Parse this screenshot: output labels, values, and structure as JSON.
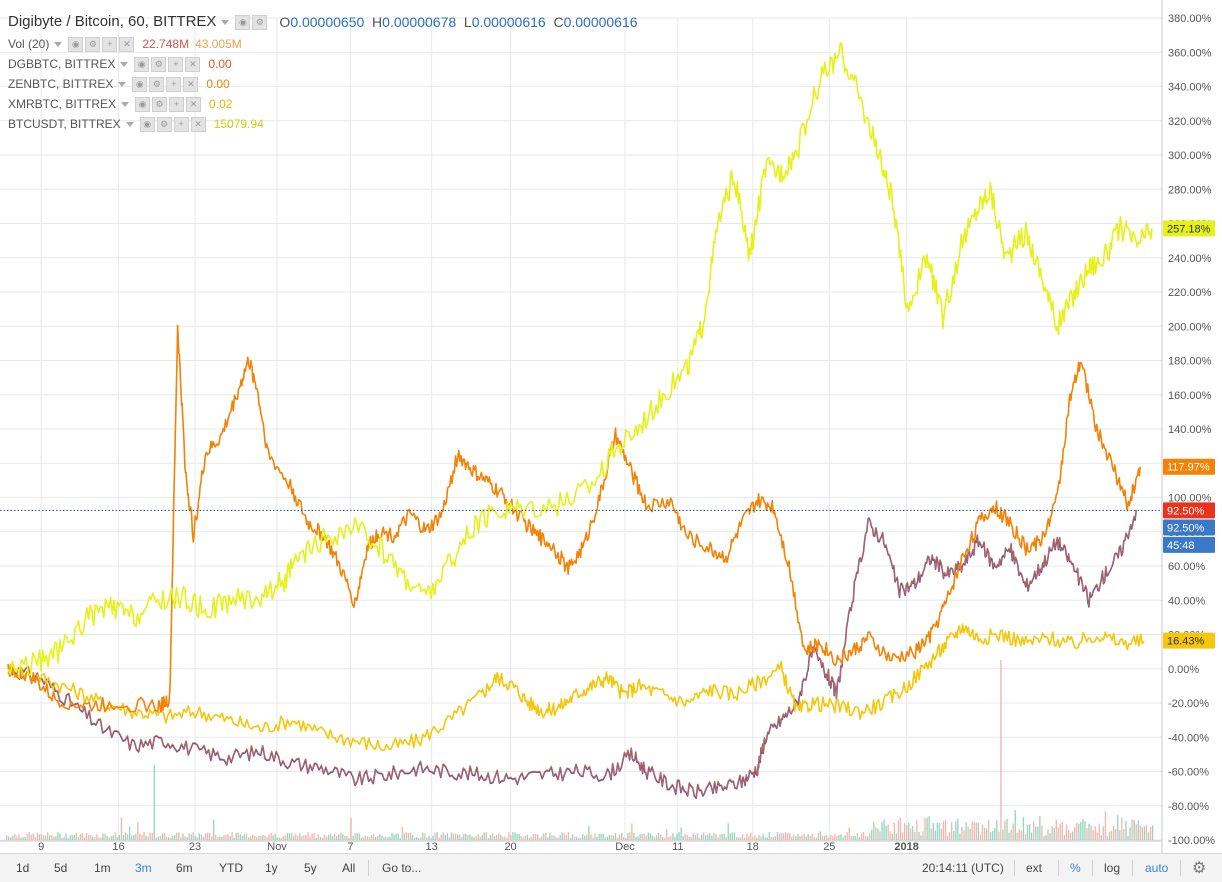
{
  "chart_data": {
    "type": "line",
    "title": "Digibyte / Bitcoin, 60, BITTREX",
    "ohlc": {
      "o": "0.00000650",
      "h": "0.00000678",
      "l": "0.00000616",
      "c": "0.00000616"
    },
    "y_scale": "percent",
    "ylim": [
      -100,
      380
    ],
    "y_ticks": [
      380,
      360,
      340,
      320,
      300,
      280,
      260,
      240,
      220,
      200,
      180,
      160,
      140,
      120,
      100,
      80,
      60,
      40,
      20,
      0,
      -20,
      -40,
      -60,
      -80,
      -100
    ],
    "x_ticks": [
      "9",
      "16",
      "23",
      "Nov",
      "7",
      "13",
      "20",
      "Dec",
      "11",
      "18",
      "25",
      "2018"
    ],
    "x_tick_positions": [
      0.042,
      0.14,
      0.237,
      0.341,
      0.434,
      0.537,
      0.637,
      0.782,
      0.849,
      0.944,
      1.041,
      1.139
    ],
    "series": [
      {
        "name": "BTCUSDT, BITTREX",
        "color": "#e4f21a",
        "last_label": "257.18%",
        "points": [
          [
            0.0,
            0
          ],
          [
            0.04,
            4
          ],
          [
            0.07,
            12
          ],
          [
            0.1,
            30
          ],
          [
            0.13,
            36
          ],
          [
            0.16,
            30
          ],
          [
            0.19,
            40
          ],
          [
            0.22,
            42
          ],
          [
            0.25,
            34
          ],
          [
            0.28,
            40
          ],
          [
            0.32,
            42
          ],
          [
            0.35,
            52
          ],
          [
            0.37,
            64
          ],
          [
            0.4,
            75
          ],
          [
            0.44,
            82
          ],
          [
            0.47,
            72
          ],
          [
            0.5,
            55
          ],
          [
            0.53,
            42
          ],
          [
            0.56,
            62
          ],
          [
            0.59,
            82
          ],
          [
            0.62,
            92
          ],
          [
            0.65,
            95
          ],
          [
            0.7,
            96
          ],
          [
            0.74,
            108
          ],
          [
            0.77,
            128
          ],
          [
            0.8,
            142
          ],
          [
            0.83,
            160
          ],
          [
            0.86,
            175
          ],
          [
            0.88,
            200
          ],
          [
            0.9,
            260
          ],
          [
            0.92,
            288
          ],
          [
            0.94,
            240
          ],
          [
            0.96,
            292
          ],
          [
            0.98,
            290
          ],
          [
            1.0,
            302
          ],
          [
            1.03,
            345
          ],
          [
            1.055,
            360
          ],
          [
            1.075,
            340
          ],
          [
            1.1,
            305
          ],
          [
            1.12,
            275
          ],
          [
            1.14,
            210
          ],
          [
            1.165,
            240
          ],
          [
            1.185,
            205
          ],
          [
            1.21,
            250
          ],
          [
            1.23,
            270
          ],
          [
            1.245,
            280
          ],
          [
            1.265,
            240
          ],
          [
            1.29,
            255
          ],
          [
            1.31,
            230
          ],
          [
            1.33,
            200
          ],
          [
            1.35,
            218
          ],
          [
            1.37,
            235
          ],
          [
            1.39,
            240
          ],
          [
            1.41,
            258
          ],
          [
            1.43,
            248
          ],
          [
            1.45,
            257
          ]
        ]
      },
      {
        "name": "XMRBTC, BITTREX",
        "color": "#f38206",
        "last_label": "117.97%",
        "points": [
          [
            0.0,
            0
          ],
          [
            0.03,
            -5
          ],
          [
            0.06,
            -18
          ],
          [
            0.1,
            -22
          ],
          [
            0.14,
            -20
          ],
          [
            0.19,
            -22
          ],
          [
            0.205,
            -18
          ],
          [
            0.215,
            200
          ],
          [
            0.225,
            115
          ],
          [
            0.235,
            78
          ],
          [
            0.25,
            125
          ],
          [
            0.27,
            135
          ],
          [
            0.29,
            160
          ],
          [
            0.305,
            180
          ],
          [
            0.315,
            165
          ],
          [
            0.33,
            125
          ],
          [
            0.36,
            105
          ],
          [
            0.38,
            85
          ],
          [
            0.4,
            78
          ],
          [
            0.42,
            60
          ],
          [
            0.44,
            38
          ],
          [
            0.455,
            70
          ],
          [
            0.47,
            80
          ],
          [
            0.49,
            78
          ],
          [
            0.51,
            90
          ],
          [
            0.53,
            80
          ],
          [
            0.55,
            90
          ],
          [
            0.57,
            125
          ],
          [
            0.59,
            115
          ],
          [
            0.61,
            108
          ],
          [
            0.63,
            100
          ],
          [
            0.65,
            88
          ],
          [
            0.67,
            78
          ],
          [
            0.69,
            72
          ],
          [
            0.71,
            58
          ],
          [
            0.73,
            72
          ],
          [
            0.75,
            100
          ],
          [
            0.77,
            136
          ],
          [
            0.79,
            115
          ],
          [
            0.81,
            95
          ],
          [
            0.84,
            98
          ],
          [
            0.86,
            78
          ],
          [
            0.89,
            70
          ],
          [
            0.91,
            65
          ],
          [
            0.93,
            85
          ],
          [
            0.95,
            98
          ],
          [
            0.97,
            95
          ],
          [
            0.99,
            60
          ],
          [
            1.01,
            10
          ],
          [
            1.03,
            15
          ],
          [
            1.05,
            5
          ],
          [
            1.07,
            10
          ],
          [
            1.09,
            18
          ],
          [
            1.12,
            5
          ],
          [
            1.15,
            10
          ],
          [
            1.17,
            20
          ],
          [
            1.19,
            40
          ],
          [
            1.21,
            65
          ],
          [
            1.23,
            85
          ],
          [
            1.25,
            95
          ],
          [
            1.27,
            85
          ],
          [
            1.29,
            70
          ],
          [
            1.31,
            75
          ],
          [
            1.33,
            100
          ],
          [
            1.345,
            155
          ],
          [
            1.36,
            180
          ],
          [
            1.38,
            140
          ],
          [
            1.4,
            118
          ],
          [
            1.42,
            95
          ],
          [
            1.435,
            118
          ]
        ]
      },
      {
        "name": "ZENBTC, BITTREX",
        "color": "#f4c70d",
        "last_label": "16.43%",
        "points": [
          [
            0.0,
            0
          ],
          [
            0.04,
            -5
          ],
          [
            0.08,
            -12
          ],
          [
            0.12,
            -20
          ],
          [
            0.16,
            -25
          ],
          [
            0.2,
            -28
          ],
          [
            0.24,
            -25
          ],
          [
            0.28,
            -30
          ],
          [
            0.32,
            -35
          ],
          [
            0.36,
            -30
          ],
          [
            0.4,
            -38
          ],
          [
            0.44,
            -42
          ],
          [
            0.48,
            -46
          ],
          [
            0.52,
            -42
          ],
          [
            0.56,
            -30
          ],
          [
            0.6,
            -15
          ],
          [
            0.62,
            -5
          ],
          [
            0.64,
            -10
          ],
          [
            0.66,
            -20
          ],
          [
            0.68,
            -25
          ],
          [
            0.7,
            -22
          ],
          [
            0.72,
            -15
          ],
          [
            0.74,
            -10
          ],
          [
            0.76,
            -5
          ],
          [
            0.78,
            -15
          ],
          [
            0.8,
            -10
          ],
          [
            0.83,
            -15
          ],
          [
            0.86,
            -20
          ],
          [
            0.89,
            -12
          ],
          [
            0.92,
            -15
          ],
          [
            0.95,
            -8
          ],
          [
            0.98,
            0
          ],
          [
            1.0,
            -25
          ],
          [
            1.02,
            -20
          ],
          [
            1.05,
            -22
          ],
          [
            1.08,
            -25
          ],
          [
            1.11,
            -20
          ],
          [
            1.14,
            -10
          ],
          [
            1.17,
            5
          ],
          [
            1.19,
            15
          ],
          [
            1.21,
            25
          ],
          [
            1.23,
            18
          ],
          [
            1.26,
            20
          ],
          [
            1.29,
            15
          ],
          [
            1.32,
            18
          ],
          [
            1.35,
            14
          ],
          [
            1.38,
            20
          ],
          [
            1.41,
            15
          ],
          [
            1.44,
            16
          ]
        ]
      },
      {
        "name": "DGBBTC, BITTREX",
        "color": "#7d4f8f",
        "last_label": "92.50%",
        "points": [
          [
            0.0,
            0
          ],
          [
            0.04,
            -5
          ],
          [
            0.08,
            -20
          ],
          [
            0.12,
            -35
          ],
          [
            0.16,
            -45
          ],
          [
            0.2,
            -42
          ],
          [
            0.24,
            -48
          ],
          [
            0.28,
            -52
          ],
          [
            0.32,
            -48
          ],
          [
            0.36,
            -55
          ],
          [
            0.4,
            -58
          ],
          [
            0.44,
            -65
          ],
          [
            0.48,
            -62
          ],
          [
            0.52,
            -58
          ],
          [
            0.56,
            -60
          ],
          [
            0.6,
            -62
          ],
          [
            0.64,
            -64
          ],
          [
            0.68,
            -62
          ],
          [
            0.72,
            -60
          ],
          [
            0.76,
            -62
          ],
          [
            0.79,
            -50
          ],
          [
            0.81,
            -60
          ],
          [
            0.84,
            -68
          ],
          [
            0.87,
            -72
          ],
          [
            0.9,
            -70
          ],
          [
            0.93,
            -66
          ],
          [
            0.95,
            -58
          ],
          [
            0.96,
            -40
          ],
          [
            0.98,
            -30
          ],
          [
            1.0,
            -20
          ],
          [
            1.02,
            10
          ],
          [
            1.04,
            -5
          ],
          [
            1.05,
            -15
          ],
          [
            1.07,
            40
          ],
          [
            1.09,
            85
          ],
          [
            1.11,
            75
          ],
          [
            1.13,
            45
          ],
          [
            1.15,
            50
          ],
          [
            1.17,
            65
          ],
          [
            1.19,
            55
          ],
          [
            1.21,
            60
          ],
          [
            1.23,
            75
          ],
          [
            1.25,
            60
          ],
          [
            1.27,
            70
          ],
          [
            1.29,
            48
          ],
          [
            1.31,
            60
          ],
          [
            1.33,
            75
          ],
          [
            1.35,
            60
          ],
          [
            1.37,
            40
          ],
          [
            1.39,
            55
          ],
          [
            1.41,
            68
          ],
          [
            1.43,
            92.5
          ]
        ]
      }
    ],
    "price_line_label": "92.50%",
    "countdown_label": "45:48",
    "volume": {
      "label": "Vol (20)",
      "value": "22.748M",
      "ma": "43.005M"
    }
  },
  "legend": [
    {
      "name": "DGBBTC, BITTREX",
      "value": "0.00",
      "color": "#e05a1f"
    },
    {
      "name": "ZENBTC, BITTREX",
      "value": "0.00",
      "color": "#f38206"
    },
    {
      "name": "XMRBTC, BITTREX",
      "value": "0.02",
      "color": "#e6b800"
    },
    {
      "name": "BTCUSDT, BITTREX",
      "value": "15079.94",
      "color": "#c9d30f"
    }
  ],
  "colors": {
    "price_line": "#1a4f8a",
    "price_label_bg": "#e8341c",
    "dgb_label_bg": "#3a78c8",
    "countdown_bg": "#3a78c8",
    "zen_label_bg": "#f4c70d",
    "btc_label_bg": "#e4f21a",
    "xmr_label_bg": "#f38206",
    "grid": "#e6e9ee"
  },
  "toolbar": {
    "timeframes": [
      "1d",
      "5d",
      "1m",
      "3m",
      "6m",
      "YTD",
      "1y",
      "5y",
      "All"
    ],
    "active": "3m",
    "goto": "Go to...",
    "time": "20:14:11 (UTC)",
    "ext": "ext",
    "percent": "%",
    "log": "log",
    "auto": "auto"
  }
}
